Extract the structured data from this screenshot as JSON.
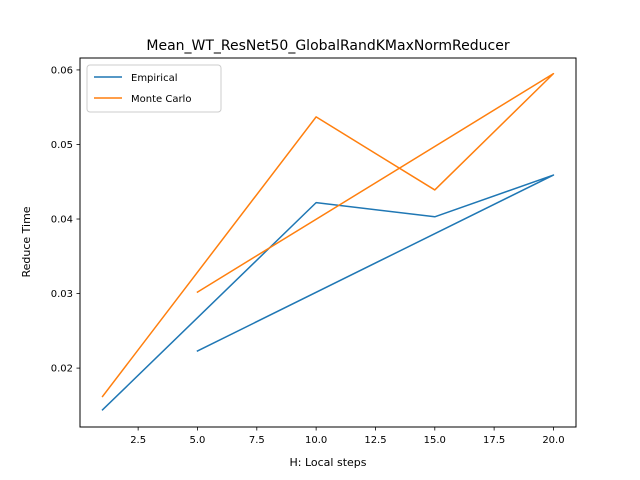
{
  "chart_data": {
    "type": "line",
    "title": "Mean_WT_ResNet50_GlobalRandKMaxNormReducer",
    "xlabel": "H: Local steps",
    "ylabel": "Reduce Time",
    "xlim": [
      0.05,
      20.95
    ],
    "ylim": [
      0.0121,
      0.0616
    ],
    "xticks": [
      "2.5",
      "5.0",
      "7.5",
      "10.0",
      "12.5",
      "15.0",
      "17.5",
      "20.0"
    ],
    "yticks": [
      "0.02",
      "0.03",
      "0.04",
      "0.05",
      "0.06"
    ],
    "legend_position": "upper-left",
    "grid": false,
    "series": [
      {
        "name": "Empirical",
        "color": "#1f77b4",
        "x": [
          1,
          10,
          15,
          20,
          5
        ],
        "y": [
          0.0144,
          0.0422,
          0.0403,
          0.0459,
          0.0223
        ]
      },
      {
        "name": "Monte Carlo",
        "color": "#ff7f0e",
        "x": [
          1,
          10,
          15,
          20,
          5
        ],
        "y": [
          0.0162,
          0.0537,
          0.0439,
          0.0595,
          0.0302
        ]
      }
    ]
  }
}
